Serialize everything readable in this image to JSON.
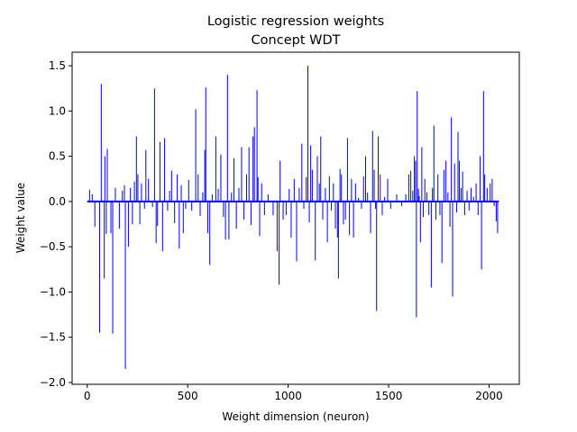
{
  "chart_data": {
    "type": "bar",
    "title": "Logistic regression weights",
    "subtitle": "Concept WDT",
    "xlabel": "Weight dimension (neuron)",
    "ylabel": "Weight value",
    "xlim": [
      -75,
      2150
    ],
    "ylim": [
      -2.02,
      1.65
    ],
    "xticks": [
      0,
      500,
      1000,
      1500,
      2000
    ],
    "xtick_labels": [
      "0",
      "500",
      "1000",
      "1500",
      "2000"
    ],
    "yticks": [
      -2.0,
      -1.5,
      -1.0,
      -0.5,
      0.0,
      0.5,
      1.0,
      1.5
    ],
    "ytick_labels": [
      "−2.0",
      "−1.5",
      "−1.0",
      "−0.5",
      "0.0",
      "0.5",
      "1.0",
      "1.5"
    ],
    "grid": false,
    "legend": "none",
    "color": "#0000ff",
    "n_dimensions": 2048,
    "points": [
      {
        "x": 12,
        "y": 0.13
      },
      {
        "x": 25,
        "y": 0.08
      },
      {
        "x": 38,
        "y": -0.28
      },
      {
        "x": 62,
        "y": -1.45
      },
      {
        "x": 70,
        "y": 1.3
      },
      {
        "x": 85,
        "y": -0.85
      },
      {
        "x": 88,
        "y": 0.5
      },
      {
        "x": 95,
        "y": -0.36
      },
      {
        "x": 100,
        "y": 0.58
      },
      {
        "x": 118,
        "y": -0.35
      },
      {
        "x": 127,
        "y": -1.46
      },
      {
        "x": 140,
        "y": 0.15
      },
      {
        "x": 160,
        "y": -0.3
      },
      {
        "x": 175,
        "y": 0.12
      },
      {
        "x": 185,
        "y": 0.18
      },
      {
        "x": 190,
        "y": -1.85
      },
      {
        "x": 205,
        "y": -0.5
      },
      {
        "x": 215,
        "y": 0.15
      },
      {
        "x": 225,
        "y": -0.25
      },
      {
        "x": 235,
        "y": 0.22
      },
      {
        "x": 245,
        "y": 0.72
      },
      {
        "x": 252,
        "y": 0.3
      },
      {
        "x": 262,
        "y": -0.25
      },
      {
        "x": 270,
        "y": 0.2
      },
      {
        "x": 285,
        "y": -0.08
      },
      {
        "x": 292,
        "y": 0.57
      },
      {
        "x": 305,
        "y": 0.25
      },
      {
        "x": 325,
        "y": -0.06
      },
      {
        "x": 335,
        "y": 1.25
      },
      {
        "x": 343,
        "y": -0.46
      },
      {
        "x": 350,
        "y": -0.27
      },
      {
        "x": 362,
        "y": 0.66
      },
      {
        "x": 375,
        "y": -0.55
      },
      {
        "x": 385,
        "y": 0.7
      },
      {
        "x": 400,
        "y": -0.1
      },
      {
        "x": 410,
        "y": 0.12
      },
      {
        "x": 420,
        "y": 0.34
      },
      {
        "x": 435,
        "y": -0.24
      },
      {
        "x": 448,
        "y": 0.3
      },
      {
        "x": 458,
        "y": -0.52
      },
      {
        "x": 468,
        "y": 0.18
      },
      {
        "x": 478,
        "y": -0.35
      },
      {
        "x": 490,
        "y": -0.08
      },
      {
        "x": 505,
        "y": 0.24
      },
      {
        "x": 520,
        "y": -0.1
      },
      {
        "x": 540,
        "y": 1.02
      },
      {
        "x": 552,
        "y": 0.3
      },
      {
        "x": 562,
        "y": -0.16
      },
      {
        "x": 575,
        "y": 0.1
      },
      {
        "x": 585,
        "y": 0.57
      },
      {
        "x": 590,
        "y": 1.26
      },
      {
        "x": 600,
        "y": -0.35
      },
      {
        "x": 610,
        "y": -0.7
      },
      {
        "x": 622,
        "y": 0.08
      },
      {
        "x": 640,
        "y": 0.72
      },
      {
        "x": 652,
        "y": 0.14
      },
      {
        "x": 665,
        "y": 0.52
      },
      {
        "x": 678,
        "y": -0.17
      },
      {
        "x": 688,
        "y": -0.42
      },
      {
        "x": 698,
        "y": 1.4
      },
      {
        "x": 705,
        "y": -0.42
      },
      {
        "x": 718,
        "y": 0.1
      },
      {
        "x": 730,
        "y": 0.48
      },
      {
        "x": 742,
        "y": -0.3
      },
      {
        "x": 755,
        "y": 0.15
      },
      {
        "x": 768,
        "y": 0.6
      },
      {
        "x": 780,
        "y": -0.2
      },
      {
        "x": 793,
        "y": 0.3
      },
      {
        "x": 805,
        "y": 0.6
      },
      {
        "x": 815,
        "y": -0.26
      },
      {
        "x": 825,
        "y": 0.72
      },
      {
        "x": 832,
        "y": 0.82
      },
      {
        "x": 845,
        "y": 1.23
      },
      {
        "x": 850,
        "y": 0.27
      },
      {
        "x": 858,
        "y": -0.38
      },
      {
        "x": 868,
        "y": 0.2
      },
      {
        "x": 882,
        "y": -0.15
      },
      {
        "x": 900,
        "y": 0.08
      },
      {
        "x": 925,
        "y": -0.15
      },
      {
        "x": 945,
        "y": -0.55
      },
      {
        "x": 955,
        "y": -0.92
      },
      {
        "x": 960,
        "y": 0.45
      },
      {
        "x": 975,
        "y": -0.2
      },
      {
        "x": 990,
        "y": -0.15
      },
      {
        "x": 1005,
        "y": 0.14
      },
      {
        "x": 1015,
        "y": -0.4
      },
      {
        "x": 1030,
        "y": 0.25
      },
      {
        "x": 1042,
        "y": -0.66
      },
      {
        "x": 1055,
        "y": 0.15
      },
      {
        "x": 1068,
        "y": 0.64
      },
      {
        "x": 1078,
        "y": -0.08
      },
      {
        "x": 1090,
        "y": 0.27
      },
      {
        "x": 1098,
        "y": 1.5
      },
      {
        "x": 1105,
        "y": -0.23
      },
      {
        "x": 1112,
        "y": 0.62
      },
      {
        "x": 1120,
        "y": 0.35
      },
      {
        "x": 1135,
        "y": -0.65
      },
      {
        "x": 1145,
        "y": 0.5
      },
      {
        "x": 1155,
        "y": 0.2
      },
      {
        "x": 1162,
        "y": 0.72
      },
      {
        "x": 1172,
        "y": -0.2
      },
      {
        "x": 1185,
        "y": 0.15
      },
      {
        "x": 1195,
        "y": -0.45
      },
      {
        "x": 1205,
        "y": 0.28
      },
      {
        "x": 1215,
        "y": -0.1
      },
      {
        "x": 1225,
        "y": 0.2
      },
      {
        "x": 1235,
        "y": -0.3
      },
      {
        "x": 1245,
        "y": -0.4
      },
      {
        "x": 1250,
        "y": -0.85
      },
      {
        "x": 1258,
        "y": 0.36
      },
      {
        "x": 1265,
        "y": 0.3
      },
      {
        "x": 1275,
        "y": -0.25
      },
      {
        "x": 1285,
        "y": -0.2
      },
      {
        "x": 1295,
        "y": 0.7
      },
      {
        "x": 1305,
        "y": -0.37
      },
      {
        "x": 1315,
        "y": 0.25
      },
      {
        "x": 1325,
        "y": -0.4
      },
      {
        "x": 1335,
        "y": 0.2
      },
      {
        "x": 1350,
        "y": 0.04
      },
      {
        "x": 1365,
        "y": -0.08
      },
      {
        "x": 1375,
        "y": 0.28
      },
      {
        "x": 1385,
        "y": 0.5
      },
      {
        "x": 1395,
        "y": 0.1
      },
      {
        "x": 1410,
        "y": -0.35
      },
      {
        "x": 1420,
        "y": 0.78
      },
      {
        "x": 1428,
        "y": 0.35
      },
      {
        "x": 1435,
        "y": -0.08
      },
      {
        "x": 1440,
        "y": -1.21
      },
      {
        "x": 1448,
        "y": 0.72
      },
      {
        "x": 1458,
        "y": 0.3
      },
      {
        "x": 1468,
        "y": -0.15
      },
      {
        "x": 1480,
        "y": 0.05
      },
      {
        "x": 1495,
        "y": 0.25
      },
      {
        "x": 1510,
        "y": -0.08
      },
      {
        "x": 1540,
        "y": 0.08
      },
      {
        "x": 1565,
        "y": -0.05
      },
      {
        "x": 1585,
        "y": 0.08
      },
      {
        "x": 1600,
        "y": 0.3
      },
      {
        "x": 1610,
        "y": 0.34
      },
      {
        "x": 1620,
        "y": 0.12
      },
      {
        "x": 1628,
        "y": 0.5
      },
      {
        "x": 1634,
        "y": 0.45
      },
      {
        "x": 1638,
        "y": -1.28
      },
      {
        "x": 1642,
        "y": 1.22
      },
      {
        "x": 1648,
        "y": 0.14
      },
      {
        "x": 1652,
        "y": 0.06
      },
      {
        "x": 1658,
        "y": -0.45
      },
      {
        "x": 1665,
        "y": 0.6
      },
      {
        "x": 1672,
        "y": -0.17
      },
      {
        "x": 1680,
        "y": 0.25
      },
      {
        "x": 1690,
        "y": 0.1
      },
      {
        "x": 1700,
        "y": -0.15
      },
      {
        "x": 1712,
        "y": -0.95
      },
      {
        "x": 1718,
        "y": 0.15
      },
      {
        "x": 1725,
        "y": 0.84
      },
      {
        "x": 1735,
        "y": -0.2
      },
      {
        "x": 1745,
        "y": 0.3
      },
      {
        "x": 1755,
        "y": -0.15
      },
      {
        "x": 1765,
        "y": -0.68
      },
      {
        "x": 1775,
        "y": 0.35
      },
      {
        "x": 1785,
        "y": 0.45
      },
      {
        "x": 1795,
        "y": 0.1
      },
      {
        "x": 1805,
        "y": -0.28
      },
      {
        "x": 1812,
        "y": 0.93
      },
      {
        "x": 1818,
        "y": -1.05
      },
      {
        "x": 1828,
        "y": 0.42
      },
      {
        "x": 1838,
        "y": -0.12
      },
      {
        "x": 1845,
        "y": 0.77
      },
      {
        "x": 1852,
        "y": 0.45
      },
      {
        "x": 1860,
        "y": 0.15
      },
      {
        "x": 1868,
        "y": 0.33
      },
      {
        "x": 1878,
        "y": -0.15
      },
      {
        "x": 1890,
        "y": 0.12
      },
      {
        "x": 1900,
        "y": -0.1
      },
      {
        "x": 1910,
        "y": 0.15
      },
      {
        "x": 1922,
        "y": 0.05
      },
      {
        "x": 1935,
        "y": 0.2
      },
      {
        "x": 1945,
        "y": -0.15
      },
      {
        "x": 1955,
        "y": 0.5
      },
      {
        "x": 1962,
        "y": -0.75
      },
      {
        "x": 1972,
        "y": 1.22
      },
      {
        "x": 1978,
        "y": 0.3
      },
      {
        "x": 1990,
        "y": 0.15
      },
      {
        "x": 2005,
        "y": 0.2
      },
      {
        "x": 2015,
        "y": 0.25
      },
      {
        "x": 2025,
        "y": -0.05
      },
      {
        "x": 2035,
        "y": -0.22
      },
      {
        "x": 2042,
        "y": -0.35
      }
    ]
  }
}
